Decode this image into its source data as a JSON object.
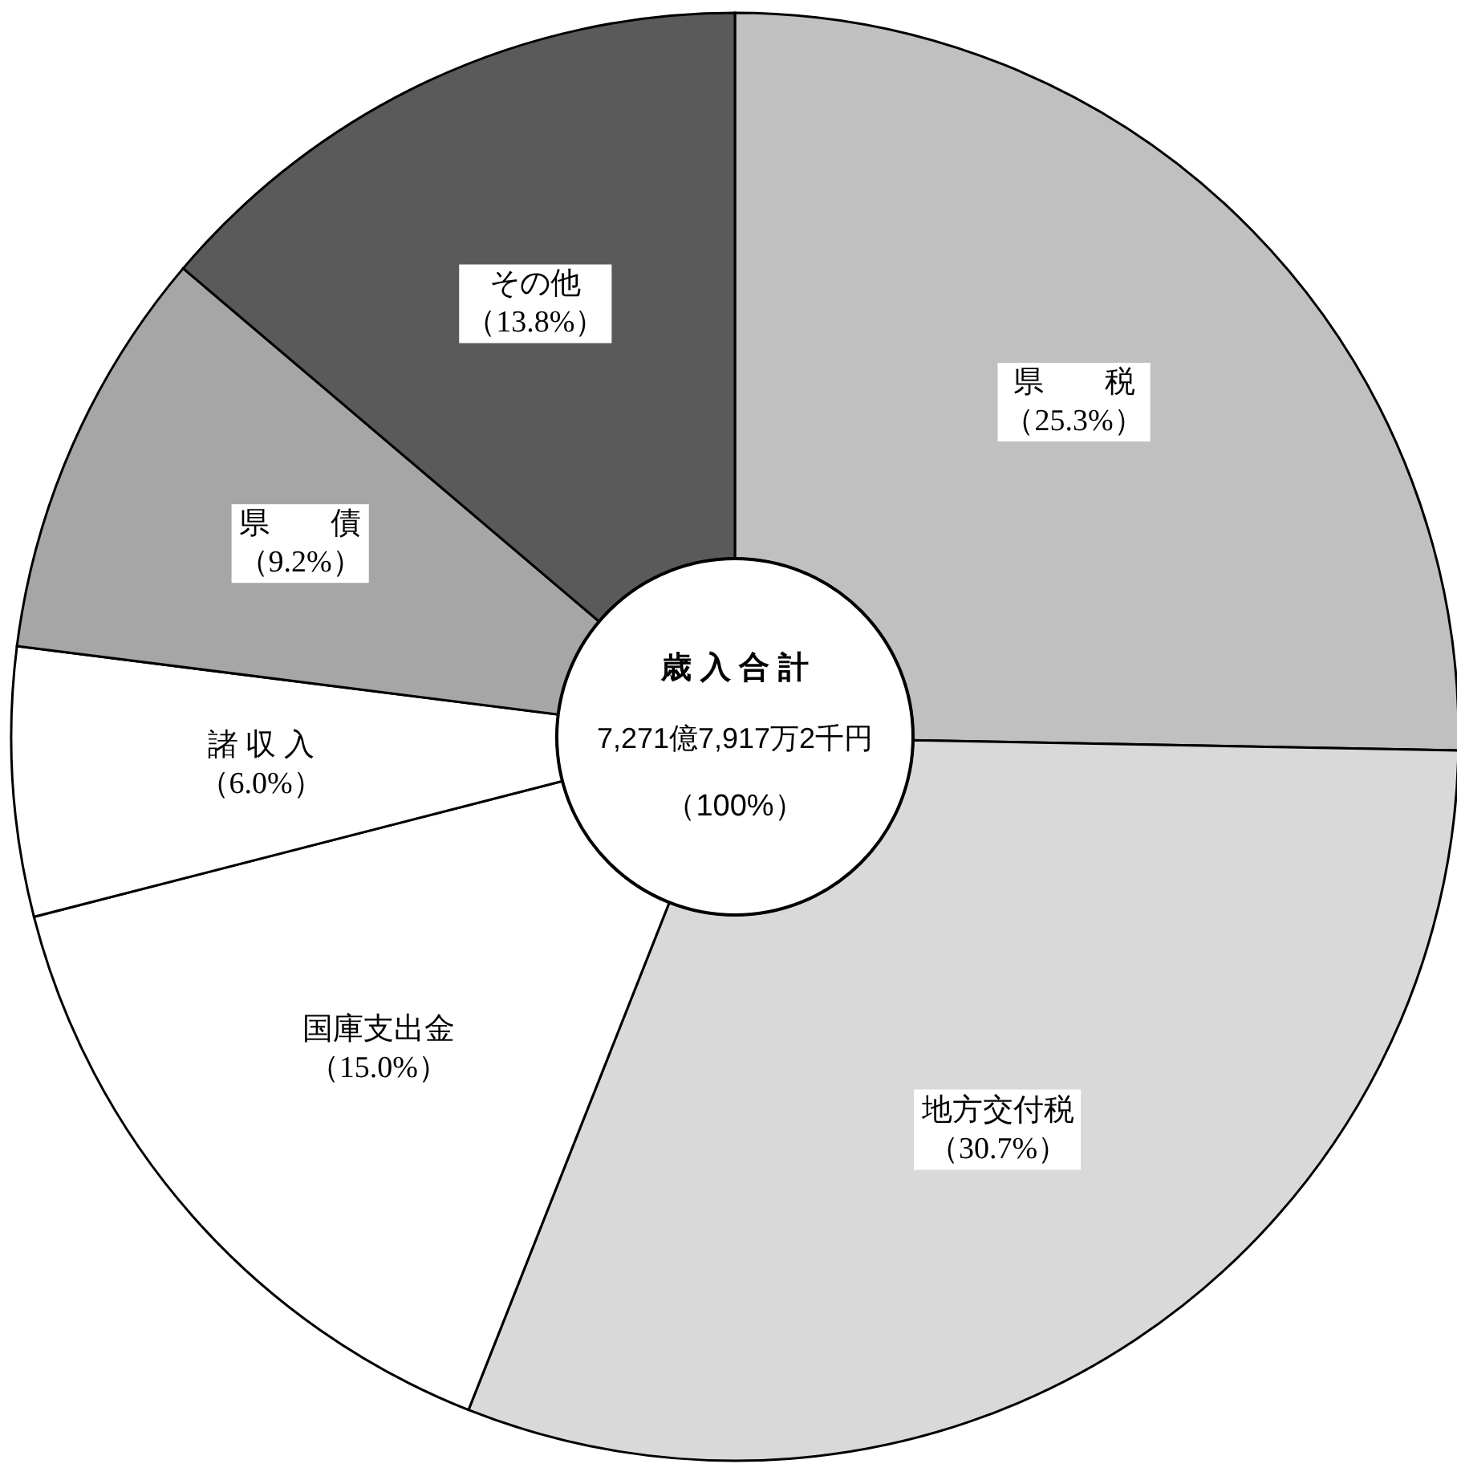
{
  "chart_data": {
    "type": "donut",
    "title": "歳 入 合 計",
    "subtitle": "7,271億7,917万2千円",
    "annotations": [
      "（100%）"
    ],
    "categories": [
      "県　　税",
      "地方交付税",
      "国庫支出金",
      "諸 収 入",
      "県　　債",
      "その他"
    ],
    "values": [
      25.3,
      30.7,
      15.0,
      6.0,
      9.2,
      13.8
    ],
    "value_labels": [
      "（25.3%）",
      "（30.7%）",
      "（15.0%）",
      "（6.0%）",
      "（9.2%）",
      "（13.8%）"
    ],
    "colors": [
      "#c0c0c0",
      "#d9d9d9",
      "#ffffff",
      "#ffffff",
      "#a6a6a6",
      "#5a5a5a"
    ]
  }
}
